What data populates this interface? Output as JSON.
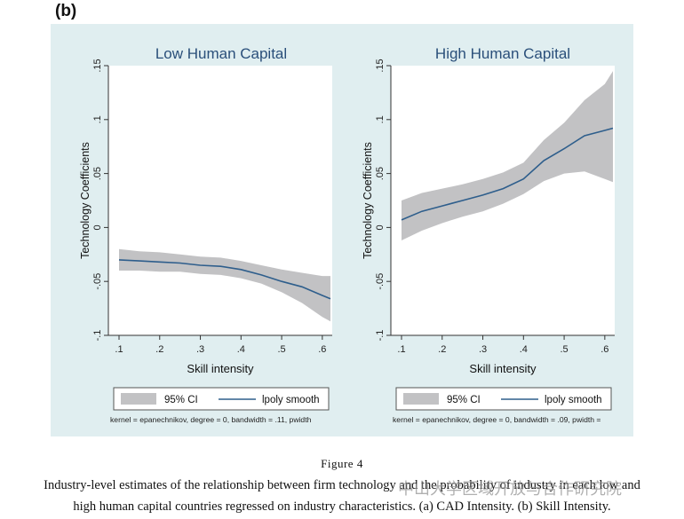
{
  "panel_label": "(b)",
  "chart_data": [
    {
      "type": "line",
      "title": "Low Human Capital",
      "xlabel": "Skill intensity",
      "ylabel": "Technology Coefficients",
      "xlim": [
        0.1,
        0.62
      ],
      "ylim": [
        -0.1,
        0.15
      ],
      "x_ticks": [
        ".1",
        ".2",
        ".3",
        ".4",
        ".5",
        ".6"
      ],
      "y_ticks": [
        "-.1",
        "-.05",
        "0",
        ".05",
        ".1",
        ".15"
      ],
      "series": [
        {
          "name": "lpoly smooth",
          "x": [
            0.1,
            0.15,
            0.2,
            0.25,
            0.3,
            0.35,
            0.4,
            0.45,
            0.5,
            0.55,
            0.6,
            0.62
          ],
          "y": [
            -0.03,
            -0.031,
            -0.032,
            -0.033,
            -0.035,
            -0.036,
            -0.039,
            -0.044,
            -0.05,
            -0.055,
            -0.063,
            -0.066
          ]
        },
        {
          "name": "95% CI",
          "x": [
            0.1,
            0.15,
            0.2,
            0.25,
            0.3,
            0.35,
            0.4,
            0.45,
            0.5,
            0.55,
            0.6,
            0.62
          ],
          "lower": [
            -0.04,
            -0.04,
            -0.041,
            -0.041,
            -0.043,
            -0.044,
            -0.047,
            -0.052,
            -0.06,
            -0.07,
            -0.083,
            -0.087
          ],
          "upper": [
            -0.02,
            -0.022,
            -0.023,
            -0.025,
            -0.027,
            -0.028,
            -0.031,
            -0.035,
            -0.039,
            -0.042,
            -0.045,
            -0.045
          ]
        }
      ],
      "legend": [
        "95% CI",
        "lpoly smooth"
      ],
      "note": "kernel = epanechnikov, degree = 0, bandwidth = .11, pwidth"
    },
    {
      "type": "line",
      "title": "High Human Capital",
      "xlabel": "Skill intensity",
      "ylabel": "Technology Coefficients",
      "xlim": [
        0.1,
        0.62
      ],
      "ylim": [
        -0.1,
        0.15
      ],
      "x_ticks": [
        ".1",
        ".2",
        ".3",
        ".4",
        ".5",
        ".6"
      ],
      "y_ticks": [
        "-.1",
        "-.05",
        "0",
        ".05",
        ".1",
        ".15"
      ],
      "series": [
        {
          "name": "lpoly smooth",
          "x": [
            0.1,
            0.15,
            0.2,
            0.25,
            0.3,
            0.35,
            0.4,
            0.45,
            0.5,
            0.55,
            0.6,
            0.62
          ],
          "y": [
            0.007,
            0.015,
            0.02,
            0.025,
            0.03,
            0.036,
            0.045,
            0.062,
            0.073,
            0.085,
            0.09,
            0.092
          ]
        },
        {
          "name": "95% CI",
          "x": [
            0.1,
            0.15,
            0.2,
            0.25,
            0.3,
            0.35,
            0.4,
            0.45,
            0.5,
            0.55,
            0.6,
            0.62
          ],
          "lower": [
            -0.012,
            -0.003,
            0.004,
            0.01,
            0.015,
            0.022,
            0.031,
            0.043,
            0.05,
            0.052,
            0.045,
            0.042
          ],
          "upper": [
            0.025,
            0.032,
            0.036,
            0.04,
            0.045,
            0.051,
            0.06,
            0.081,
            0.097,
            0.118,
            0.133,
            0.145
          ]
        }
      ],
      "legend": [
        "95% CI",
        "lpoly smooth"
      ],
      "note": "kernel = epanechnikov, degree = 0, bandwidth = .09, pwidth ="
    }
  ],
  "colors": {
    "band": "#c2c2c4",
    "line": "#2e5e8c",
    "background": "#e0eef0"
  },
  "caption": {
    "figure_label": "Figure 4",
    "line1": "Industry-level estimates of the relationship between firm technology and the probability of industry in each low and",
    "line2": "high human capital countries regressed on industry characteristics. (a) CAD Intensity. (b) Skill Intensity."
  },
  "watermark": "中山大学区域开放与合作研究院"
}
